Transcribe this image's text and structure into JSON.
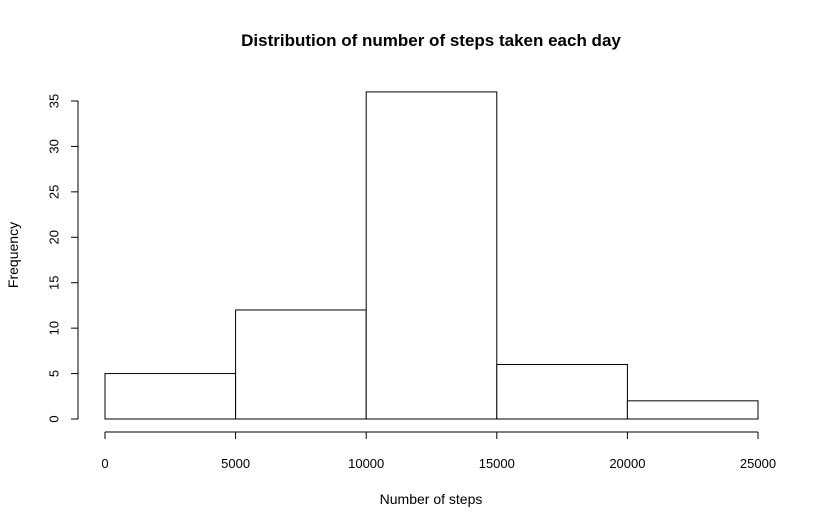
{
  "chart_data": {
    "type": "bar",
    "title": "Distribution of number of steps taken each day",
    "xlabel": "Number of steps",
    "ylabel": "Frequency",
    "bins": [
      {
        "start": 0,
        "end": 5000,
        "count": 5
      },
      {
        "start": 5000,
        "end": 10000,
        "count": 12
      },
      {
        "start": 10000,
        "end": 15000,
        "count": 36
      },
      {
        "start": 15000,
        "end": 20000,
        "count": 6
      },
      {
        "start": 20000,
        "end": 25000,
        "count": 2
      }
    ],
    "xlim": [
      0,
      25000
    ],
    "ylim": [
      0,
      35
    ],
    "xticks": [
      0,
      5000,
      10000,
      15000,
      20000,
      25000
    ],
    "yticks": [
      0,
      5,
      10,
      15,
      20,
      25,
      30,
      35
    ],
    "grid": false,
    "legend": "none"
  }
}
